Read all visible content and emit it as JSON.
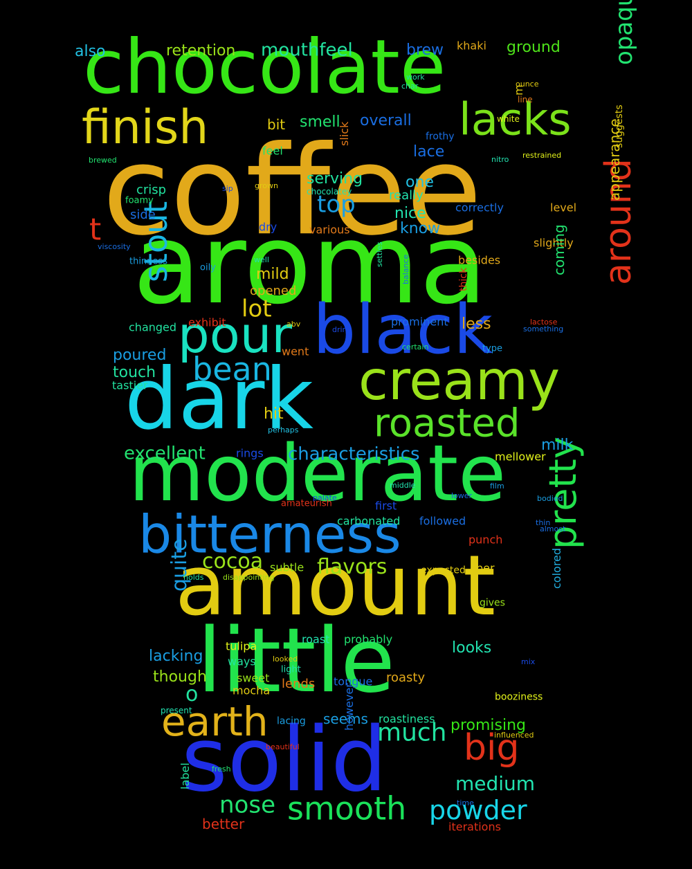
{
  "cloud": {
    "background": "#000000",
    "words": [
      {
        "text": "coffee",
        "color": "#e2a91a"
      },
      {
        "text": "aroma",
        "color": "#36e616"
      },
      {
        "text": "chocolate",
        "color": "#36e616"
      },
      {
        "text": "moderate",
        "color": "#22e34d"
      },
      {
        "text": "little",
        "color": "#22e34d"
      },
      {
        "text": "amount",
        "color": "#e2cc12"
      },
      {
        "text": "solid",
        "color": "#1f2ee6"
      },
      {
        "text": "dark",
        "color": "#18d5e8"
      },
      {
        "text": "black",
        "color": "#1a4ae6"
      },
      {
        "text": "bitterness",
        "color": "#1a88e6"
      },
      {
        "text": "creamy",
        "color": "#9ae21a"
      },
      {
        "text": "pour",
        "color": "#1ae2c1"
      },
      {
        "text": "finish",
        "color": "#e2d61a"
      },
      {
        "text": "lacks",
        "color": "#7be21a"
      },
      {
        "text": "roasted",
        "color": "#5ae22a"
      },
      {
        "text": "earth",
        "color": "#e2b21a"
      },
      {
        "text": "smooth",
        "color": "#1ae25a"
      },
      {
        "text": "bean",
        "color": "#1ab6e2"
      },
      {
        "text": "pretty",
        "color": "#22e34d"
      },
      {
        "text": "around",
        "color": "#e2321a"
      },
      {
        "text": "stout",
        "color": "#1ab6e2"
      },
      {
        "text": "big",
        "color": "#e2321a"
      },
      {
        "text": "powder",
        "color": "#18d5e8"
      },
      {
        "text": "much",
        "color": "#22e3a0"
      },
      {
        "text": "nose",
        "color": "#22e370"
      },
      {
        "text": "medium",
        "color": "#22e3b0"
      },
      {
        "text": "top",
        "color": "#1a9ee2"
      },
      {
        "text": "cocoa",
        "color": "#9ae21a"
      },
      {
        "text": "flavors",
        "color": "#9ae21a"
      },
      {
        "text": "characteristics",
        "color": "#1a9ee2"
      },
      {
        "text": "opaque",
        "color": "#22e370"
      },
      {
        "text": "lot",
        "color": "#e2cc12"
      },
      {
        "text": "t",
        "color": "#e2321a"
      },
      {
        "text": "quite",
        "color": "#1a9ee2"
      },
      {
        "text": "excellent",
        "color": "#22e370"
      },
      {
        "text": "mouthfeel",
        "color": "#22e3a0"
      },
      {
        "text": "retention",
        "color": "#9ae21a"
      },
      {
        "text": "also",
        "color": "#22c1e3"
      },
      {
        "text": "brew",
        "color": "#1a6ee2"
      },
      {
        "text": "khaki",
        "color": "#e2a91a"
      },
      {
        "text": "ground",
        "color": "#4ee21a"
      },
      {
        "text": "smell",
        "color": "#22e370"
      },
      {
        "text": "overall",
        "color": "#1a6ee2"
      },
      {
        "text": "bit",
        "color": "#e2cc12"
      },
      {
        "text": "feel",
        "color": "#22e370"
      },
      {
        "text": "lace",
        "color": "#1a6ee2"
      },
      {
        "text": "serving",
        "color": "#22e3a0"
      },
      {
        "text": "one",
        "color": "#22c1e3"
      },
      {
        "text": "really",
        "color": "#22e3b0"
      },
      {
        "text": "nice",
        "color": "#22e3b0"
      },
      {
        "text": "know",
        "color": "#1a9ee2"
      },
      {
        "text": "crisp",
        "color": "#22e3a0"
      },
      {
        "text": "side",
        "color": "#1a6ee2"
      },
      {
        "text": "dry",
        "color": "#1a4ae6"
      },
      {
        "text": "various",
        "color": "#e27a1a"
      },
      {
        "text": "correctly",
        "color": "#1a6ee2"
      },
      {
        "text": "level",
        "color": "#e2a91a"
      },
      {
        "text": "slightly",
        "color": "#e2a91a"
      },
      {
        "text": "appearance",
        "color": "#e2cc12"
      },
      {
        "text": "besides",
        "color": "#e2a91a"
      },
      {
        "text": "coming",
        "color": "#22e370"
      },
      {
        "text": "mild",
        "color": "#e2cc12"
      },
      {
        "text": "opened",
        "color": "#e2a91a"
      },
      {
        "text": "prominent",
        "color": "#1a6ee2"
      },
      {
        "text": "less",
        "color": "#e2a91a"
      },
      {
        "text": "changed",
        "color": "#22e3a0"
      },
      {
        "text": "exhibit",
        "color": "#e2321a"
      },
      {
        "text": "went",
        "color": "#e27a1a"
      },
      {
        "text": "poured",
        "color": "#1a9ee2"
      },
      {
        "text": "touch",
        "color": "#22e3a0"
      },
      {
        "text": "tastier",
        "color": "#22e3a0"
      },
      {
        "text": "hit",
        "color": "#e2cc12"
      },
      {
        "text": "milk",
        "color": "#1a9ee2"
      },
      {
        "text": "rings",
        "color": "#1a4ae6"
      },
      {
        "text": "mellower",
        "color": "#e2f21a"
      },
      {
        "text": "carbonated",
        "color": "#22e3a0"
      },
      {
        "text": "first",
        "color": "#1a4ae6"
      },
      {
        "text": "followed",
        "color": "#1a6ee2"
      },
      {
        "text": "punch",
        "color": "#e2321a"
      },
      {
        "text": "subtle",
        "color": "#9ae21a"
      },
      {
        "text": "expected",
        "color": "#e2cc12"
      },
      {
        "text": "per",
        "color": "#e2cc12"
      },
      {
        "text": "gives",
        "color": "#9ae21a"
      },
      {
        "text": "colored",
        "color": "#22b1e3"
      },
      {
        "text": "roast",
        "color": "#22e3b0"
      },
      {
        "text": "probably",
        "color": "#22e370"
      },
      {
        "text": "tulipa",
        "color": "#e2f21a"
      },
      {
        "text": "lacking",
        "color": "#1a9ee2"
      },
      {
        "text": "looks",
        "color": "#22e3b0"
      },
      {
        "text": "ways",
        "color": "#22e3a0"
      },
      {
        "text": "though",
        "color": "#9ae21a"
      },
      {
        "text": "sweet",
        "color": "#9ae21a"
      },
      {
        "text": "mocha",
        "color": "#e2cc12"
      },
      {
        "text": "lends",
        "color": "#e27a1a"
      },
      {
        "text": "tongue",
        "color": "#1a6ee2"
      },
      {
        "text": "roasty",
        "color": "#e2a91a"
      },
      {
        "text": "o",
        "color": "#22e3a0"
      },
      {
        "text": "seems",
        "color": "#1a9ee2"
      },
      {
        "text": "roastiness",
        "color": "#22e3a0"
      },
      {
        "text": "promising",
        "color": "#36e616"
      },
      {
        "text": "lacing",
        "color": "#1a9ee2"
      },
      {
        "text": "booziness",
        "color": "#e2f21a"
      },
      {
        "text": "however",
        "color": "#1a6ee2"
      },
      {
        "text": "label",
        "color": "#22e3a0"
      },
      {
        "text": "better",
        "color": "#e2321a"
      },
      {
        "text": "iterations",
        "color": "#e2321a"
      },
      {
        "text": "m",
        "color": "#e2cc12"
      },
      {
        "text": "ounce",
        "color": "#e2cc12"
      },
      {
        "text": "line",
        "color": "#e27a1a"
      },
      {
        "text": "white",
        "color": "#e2f21a"
      },
      {
        "text": "work",
        "color": "#22e3a0"
      },
      {
        "text": "char",
        "color": "#22e3a0"
      },
      {
        "text": "frothy",
        "color": "#1a6ee2"
      },
      {
        "text": "restrained",
        "color": "#e2f21a"
      },
      {
        "text": "nitro",
        "color": "#22e3b0"
      },
      {
        "text": "slick",
        "color": "#e27a1a"
      },
      {
        "text": "suggests",
        "color": "#e2cc12"
      },
      {
        "text": "brewed",
        "color": "#22e370"
      },
      {
        "text": "sip",
        "color": "#1a4ae6"
      },
      {
        "text": "grown",
        "color": "#e2cc12"
      },
      {
        "text": "chocolatey",
        "color": "#22e3b0"
      },
      {
        "text": "foamy",
        "color": "#22e370"
      },
      {
        "text": "viscosity",
        "color": "#1a6ee2"
      },
      {
        "text": "thinness",
        "color": "#1a9ee2"
      },
      {
        "text": "oily",
        "color": "#1a9ee2"
      },
      {
        "text": "well",
        "color": "#22e3b0"
      },
      {
        "text": "settles",
        "color": "#22e3a0"
      },
      {
        "text": "balance",
        "color": "#1a6ee2"
      },
      {
        "text": "thick",
        "color": "#e2321a"
      },
      {
        "text": "abv",
        "color": "#e2cc12"
      },
      {
        "text": "drink",
        "color": "#1a4ae6"
      },
      {
        "text": "lactose",
        "color": "#e2321a"
      },
      {
        "text": "something",
        "color": "#1a6ee2"
      },
      {
        "text": "certain",
        "color": "#22e370"
      },
      {
        "text": "type",
        "color": "#1a9ee2"
      },
      {
        "text": "perhaps",
        "color": "#22c1e3"
      },
      {
        "text": "middle",
        "color": "#22e3b0"
      },
      {
        "text": "film",
        "color": "#1a9ee2"
      },
      {
        "text": "palate",
        "color": "#1a4ae6"
      },
      {
        "text": "lower",
        "color": "#1a6ee2"
      },
      {
        "text": "bodied",
        "color": "#1a9ee2"
      },
      {
        "text": "amateurish",
        "color": "#e2321a"
      },
      {
        "text": "thin",
        "color": "#1a6ee2"
      },
      {
        "text": "almost",
        "color": "#1a6ee2"
      },
      {
        "text": "holds",
        "color": "#22e3a0"
      },
      {
        "text": "disappointing",
        "color": "#9ae21a"
      },
      {
        "text": "looked",
        "color": "#e2cc12"
      },
      {
        "text": "light",
        "color": "#22e3b0"
      },
      {
        "text": "mix",
        "color": "#1a4ae6"
      },
      {
        "text": "present",
        "color": "#22e3b0"
      },
      {
        "text": "beautiful",
        "color": "#e2321a"
      },
      {
        "text": "influenced",
        "color": "#e2cc12"
      },
      {
        "text": "fresh",
        "color": "#22e370"
      },
      {
        "text": "time",
        "color": "#1a6ee2"
      }
    ]
  }
}
